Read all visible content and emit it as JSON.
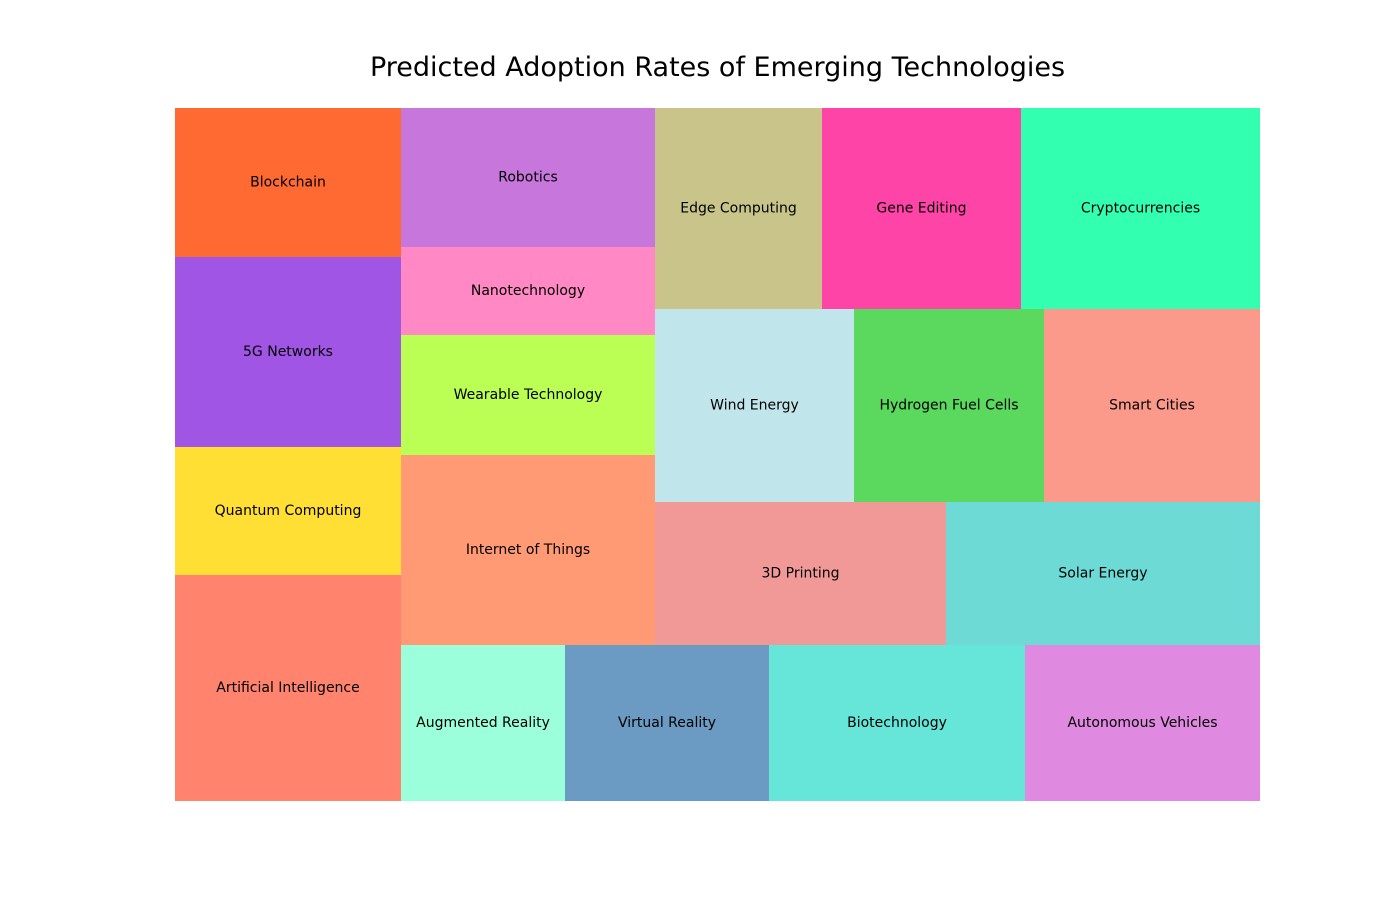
{
  "chart_data": {
    "type": "treemap",
    "title": "Predicted Adoption Rates of Emerging Technologies",
    "items": [
      {
        "label": "Blockchain",
        "color": "#ff6a33"
      },
      {
        "label": "5G Networks",
        "color": "#a055e4"
      },
      {
        "label": "Quantum Computing",
        "color": "#ffdf33"
      },
      {
        "label": "Artificial Intelligence",
        "color": "#ff836d"
      },
      {
        "label": "Robotics",
        "color": "#c777dc"
      },
      {
        "label": "Nanotechnology",
        "color": "#ff88c5"
      },
      {
        "label": "Wearable Technology",
        "color": "#bbff55"
      },
      {
        "label": "Internet of Things",
        "color": "#ff9a75"
      },
      {
        "label": "Augmented Reality",
        "color": "#9bffdc"
      },
      {
        "label": "Virtual Reality",
        "color": "#6b9bc3"
      },
      {
        "label": "Edge Computing",
        "color": "#c9c48a"
      },
      {
        "label": "Gene Editing",
        "color": "#ff44a7"
      },
      {
        "label": "Cryptocurrencies",
        "color": "#33ffb0"
      },
      {
        "label": "Wind Energy",
        "color": "#c0e5ea"
      },
      {
        "label": "Hydrogen Fuel Cells",
        "color": "#5bd85e"
      },
      {
        "label": "Smart Cities",
        "color": "#fb9a8b"
      },
      {
        "label": "3D Printing",
        "color": "#f19997"
      },
      {
        "label": "Solar Energy",
        "color": "#6ddad6"
      },
      {
        "label": "Biotechnology",
        "color": "#66e5d9"
      },
      {
        "label": "Autonomous Vehicles",
        "color": "#df8ae0"
      }
    ]
  }
}
